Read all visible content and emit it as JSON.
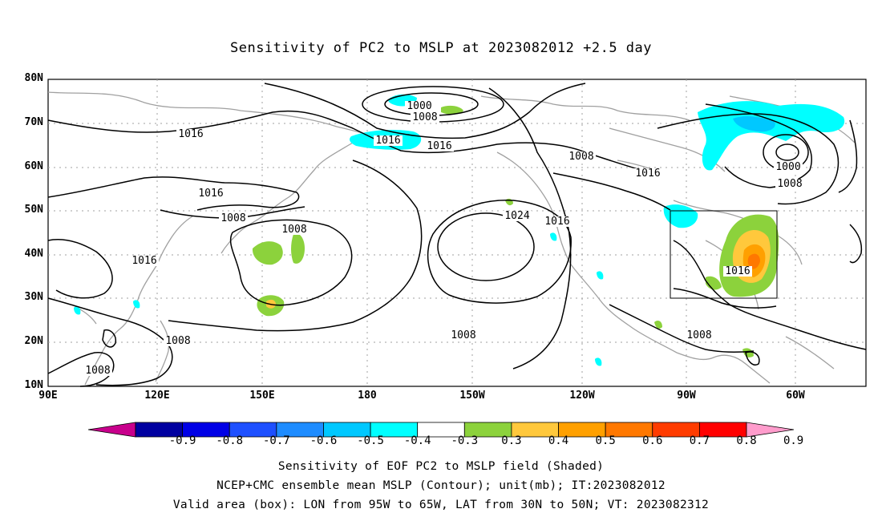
{
  "title": "Sensitivity of PC2 to MSLP at 2023082012 +2.5 day",
  "lat_labels": [
    "80N",
    "70N",
    "60N",
    "50N",
    "40N",
    "30N",
    "20N",
    "10N"
  ],
  "lon_labels": [
    "90E",
    "120E",
    "150E",
    "180",
    "150W",
    "120W",
    "90W",
    "60W"
  ],
  "contour_labels": [
    {
      "text": "1000"
    },
    {
      "text": "1008"
    },
    {
      "text": "1016"
    },
    {
      "text": "1016"
    },
    {
      "text": "1016"
    },
    {
      "text": "1016"
    },
    {
      "text": "1008"
    },
    {
      "text": "1008"
    },
    {
      "text": "1016"
    },
    {
      "text": "1024"
    },
    {
      "text": "1016"
    },
    {
      "text": "1008"
    },
    {
      "text": "1000"
    },
    {
      "text": "1008"
    },
    {
      "text": "1016"
    },
    {
      "text": "1016"
    },
    {
      "text": "1008"
    },
    {
      "text": "1008"
    },
    {
      "text": "1008"
    }
  ],
  "colorbar": {
    "labels": [
      "-0.9",
      "-0.8",
      "-0.7",
      "-0.6",
      "-0.5",
      "-0.4",
      "-0.3",
      "0.3",
      "0.4",
      "0.5",
      "0.6",
      "0.7",
      "0.8",
      "0.9"
    ],
    "colors": [
      "#c8008c",
      "#0000a0",
      "#0000e6",
      "#1e50ff",
      "#1e8cff",
      "#00c8ff",
      "#00ffff",
      "#ffffff",
      "#8cd23c",
      "#ffc83c",
      "#ffa000",
      "#ff7800",
      "#ff3c00",
      "#ff0000",
      "#ff9ccc"
    ]
  },
  "captions": [
    "Sensitivity of EOF PC2 to MSLP field (Shaded)",
    "NCEP+CMC ensemble mean MSLP (Contour); unit(mb); IT:2023082012",
    "Valid area (box): LON from 95W to 65W, LAT from 30N to 50N; VT: 2023082312"
  ],
  "colors": {
    "contour": "#000000",
    "coast": "#a0a0a0",
    "grid": "#a0a0a0",
    "box": "#000000"
  }
}
